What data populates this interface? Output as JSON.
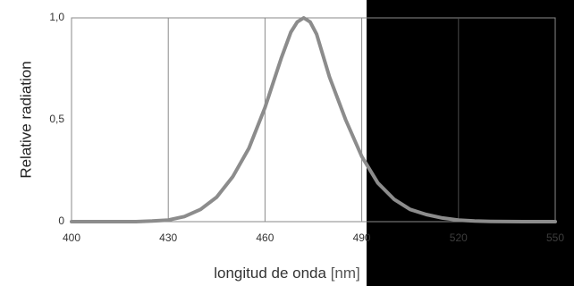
{
  "chart_data": {
    "type": "line",
    "title": "",
    "xlabel": "longitud de onda",
    "xlabel_unit": "[nm]",
    "ylabel": "Relative radiation",
    "xlim": [
      400,
      550
    ],
    "ylim": [
      0,
      1.0
    ],
    "x_ticks": [
      400,
      430,
      460,
      490,
      520,
      550
    ],
    "x_tick_labels": [
      "400",
      "430",
      "460",
      "490",
      "520",
      "550"
    ],
    "y_ticks": [
      0,
      0.5,
      1.0
    ],
    "y_tick_labels": [
      "0",
      "0,5",
      "1,0"
    ],
    "grid": "vertical",
    "line_color": "#8c8c8c",
    "x": [
      400,
      410,
      420,
      425,
      430,
      435,
      440,
      445,
      450,
      455,
      460,
      465,
      468,
      470,
      472,
      474,
      476,
      480,
      485,
      490,
      495,
      500,
      505,
      510,
      515,
      520,
      525,
      530,
      540,
      550
    ],
    "y": [
      0.0,
      0.0,
      0.0,
      0.003,
      0.008,
      0.025,
      0.06,
      0.12,
      0.22,
      0.36,
      0.56,
      0.8,
      0.93,
      0.98,
      1.0,
      0.98,
      0.92,
      0.71,
      0.5,
      0.32,
      0.19,
      0.11,
      0.06,
      0.035,
      0.018,
      0.008,
      0.003,
      0.001,
      0.0,
      0.0
    ]
  }
}
